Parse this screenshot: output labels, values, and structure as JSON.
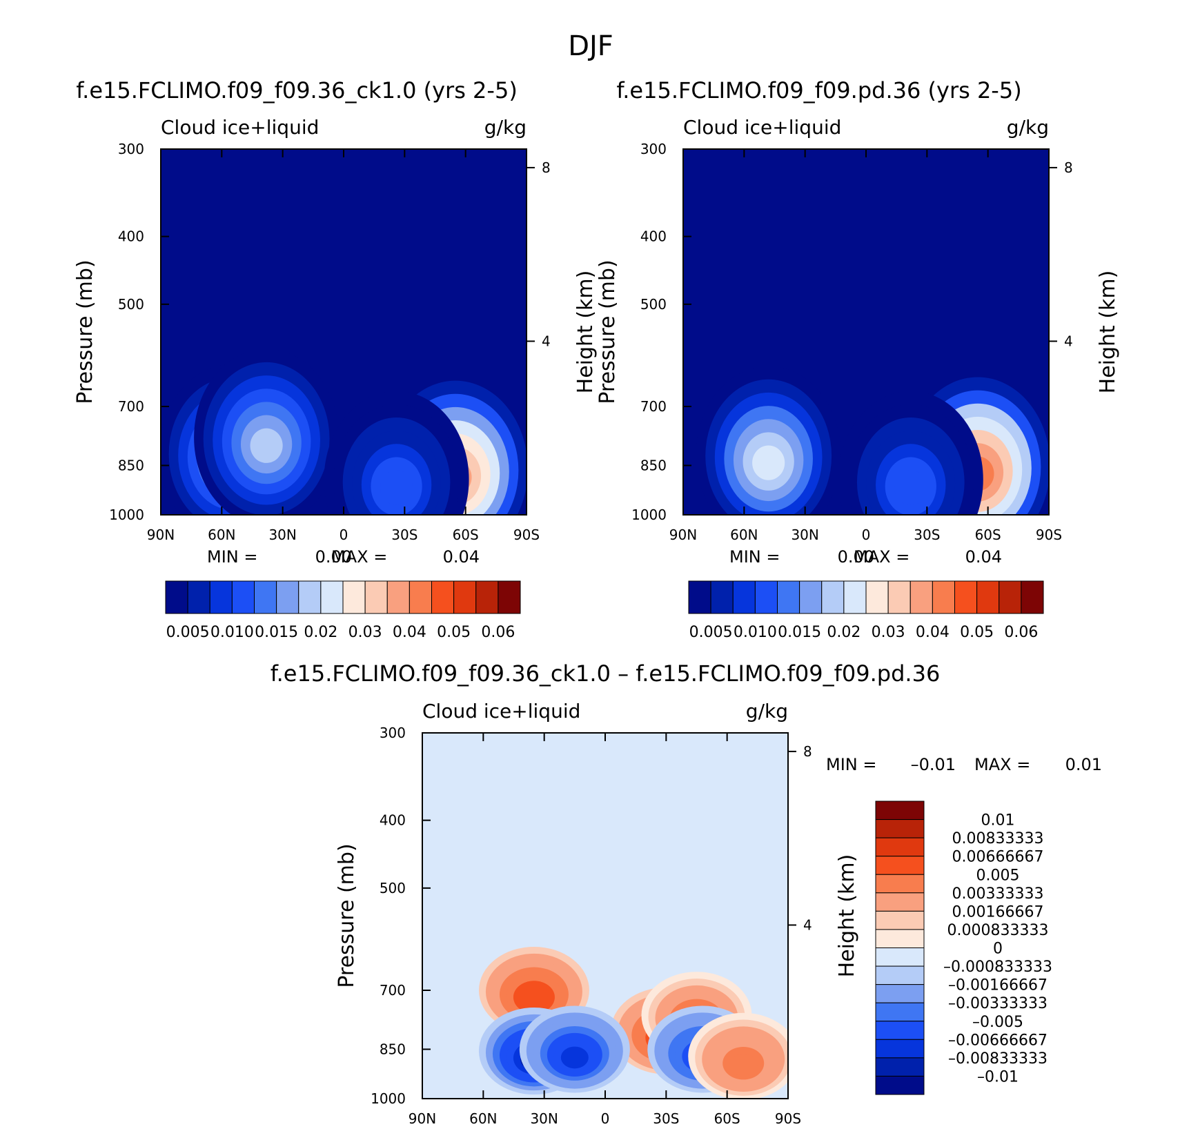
{
  "page_title": "DJF",
  "colors": {
    "seq": [
      "#000c8a",
      "#0021ac",
      "#0635dc",
      "#1c4ff5",
      "#3f76f3",
      "#7c9ff1",
      "#b4ccf7",
      "#d9e8fb",
      "#fde9dc",
      "#fbcbb4",
      "#f9a07f",
      "#f87d4e",
      "#f5501e",
      "#e0390f",
      "#b82308",
      "#7d0505"
    ],
    "diff": [
      "#000c8a",
      "#0021ac",
      "#0635dc",
      "#1c4ff5",
      "#3f76f3",
      "#7c9ff1",
      "#b4ccf7",
      "#d9e8fb",
      "#fde9dc",
      "#fbcbb4",
      "#f9a07f",
      "#f87d4e",
      "#f5501e",
      "#e0390f",
      "#b82308",
      "#7d0505"
    ],
    "missing": "#ffffff"
  },
  "chart_data": [
    {
      "type": "heatmap",
      "title": "f.e15.FCLIMO.f09_f09.36_ck1.0 (yrs 2-5)",
      "left_label": "Cloud ice+liquid",
      "right_label": "g/kg",
      "ylabel": "Pressure (mb)",
      "ylabel_right": "Height (km)",
      "x_ticks": [
        "90N",
        "60N",
        "30N",
        "0",
        "30S",
        "60S",
        "90S"
      ],
      "y_ticks": [
        "300",
        "400",
        "500",
        "700",
        "850",
        "1000"
      ],
      "y_ticks_right": [
        "8",
        "4"
      ],
      "stats": {
        "min_label": "MIN =",
        "min_value": "0.00",
        "max_label": "MAX =",
        "max_value": "0.04"
      },
      "colorbar_labels": [
        "0.005",
        "0.010",
        "0.015",
        "0.02",
        "0.03",
        "0.04",
        "0.05",
        "0.06"
      ],
      "blobs": [
        {
          "lat": 55,
          "p": 815,
          "value": 0.02
        },
        {
          "lat": 38,
          "p": 775,
          "value": 0.018
        },
        {
          "lat": -55,
          "p": 860,
          "value": 0.04
        },
        {
          "lat": -26,
          "p": 890,
          "value": 0.012
        }
      ]
    },
    {
      "type": "heatmap",
      "title": "f.e15.FCLIMO.f09_f09.pd.36 (yrs 2-5)",
      "left_label": "Cloud ice+liquid",
      "right_label": "g/kg",
      "ylabel": "Pressure (mb)",
      "ylabel_right": "Height (km)",
      "x_ticks": [
        "90N",
        "60N",
        "30N",
        "0",
        "30S",
        "60S",
        "90S"
      ],
      "y_ticks": [
        "300",
        "400",
        "500",
        "700",
        "850",
        "1000"
      ],
      "y_ticks_right": [
        "8",
        "4"
      ],
      "stats": {
        "min_label": "MIN =",
        "min_value": "0.00",
        "max_label": "MAX =",
        "max_value": "0.04"
      },
      "colorbar_labels": [
        "0.005",
        "0.010",
        "0.015",
        "0.02",
        "0.03",
        "0.04",
        "0.05",
        "0.06"
      ],
      "blobs": [
        {
          "lat": 48,
          "p": 820,
          "value": 0.022
        },
        {
          "lat": -55,
          "p": 850,
          "value": 0.042
        },
        {
          "lat": -22,
          "p": 890,
          "value": 0.012
        }
      ]
    },
    {
      "type": "heatmap",
      "title": "f.e15.FCLIMO.f09_f09.36_ck1.0 – f.e15.FCLIMO.f09_f09.pd.36",
      "left_label": "Cloud ice+liquid",
      "right_label": "g/kg",
      "ylabel": "Pressure (mb)",
      "ylabel_right": "Height (km)",
      "x_ticks": [
        "90N",
        "60N",
        "30N",
        "0",
        "30S",
        "60S",
        "90S"
      ],
      "y_ticks": [
        "300",
        "400",
        "500",
        "700",
        "850",
        "1000"
      ],
      "y_ticks_right": [
        "8",
        "4"
      ],
      "stats": {
        "min_label": "MIN =",
        "min_value": "–0.01",
        "max_label": "MAX =",
        "max_value": "0.01"
      },
      "colorbar_labels": [
        "0.01",
        "0.00833333",
        "0.00666667",
        "0.005",
        "0.00333333",
        "0.00166667",
        "0.000833333",
        "0",
        "–0.000833333",
        "–0.00166667",
        "–0.00333333",
        "–0.005",
        "–0.00666667",
        "–0.00833333",
        "–0.01"
      ],
      "blobs": [
        {
          "lat": 35,
          "p": 700,
          "value": 0.0065
        },
        {
          "lat": -30,
          "p": 800,
          "value": 0.007
        },
        {
          "lat": -45,
          "p": 760,
          "value": 0.005
        },
        {
          "lat": 35,
          "p": 855,
          "value": -0.009
        },
        {
          "lat": 15,
          "p": 850,
          "value": -0.007
        },
        {
          "lat": -48,
          "p": 850,
          "value": -0.006
        },
        {
          "lat": -68,
          "p": 870,
          "value": 0.004
        }
      ]
    }
  ]
}
